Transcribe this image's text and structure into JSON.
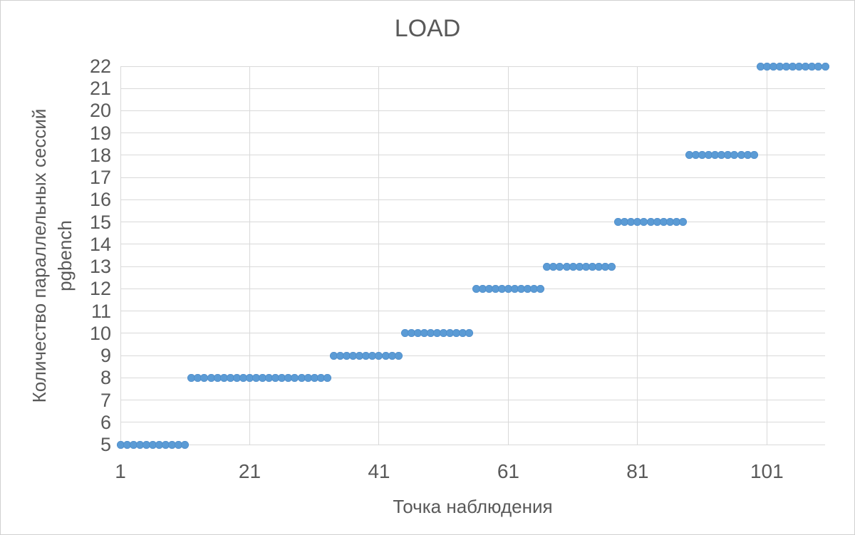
{
  "chart_title": "LOAD",
  "colors": {
    "marker": "#5B9BD5",
    "marker_border": "#4E8AC7",
    "gridline": "#D9D9D9",
    "text": "#595959",
    "chart_border": "#D0D0D0",
    "background": "#FFFFFF"
  },
  "chart_data": {
    "type": "scatter",
    "title": "LOAD",
    "xlabel": "Точка наблюдения",
    "ylabel_line1": "Количество параллельных сессий",
    "ylabel_line2": "pgbench",
    "xlim": [
      1,
      110
    ],
    "ylim": [
      5,
      22
    ],
    "x_ticks": [
      1,
      21,
      41,
      61,
      81,
      101
    ],
    "y_ticks": [
      5,
      6,
      7,
      8,
      9,
      10,
      11,
      12,
      13,
      14,
      15,
      16,
      17,
      18,
      19,
      20,
      21,
      22
    ],
    "grid": true,
    "legend": false,
    "marker_shape": "circle",
    "runs": [
      {
        "value": 5,
        "from": 1,
        "to": 11
      },
      {
        "value": 8,
        "from": 12,
        "to": 33
      },
      {
        "value": 9,
        "from": 34,
        "to": 44
      },
      {
        "value": 10,
        "from": 45,
        "to": 55
      },
      {
        "value": 12,
        "from": 56,
        "to": 66
      },
      {
        "value": 13,
        "from": 67,
        "to": 77
      },
      {
        "value": 15,
        "from": 78,
        "to": 88
      },
      {
        "value": 18,
        "from": 89,
        "to": 99
      },
      {
        "value": 22,
        "from": 100,
        "to": 110
      }
    ]
  }
}
